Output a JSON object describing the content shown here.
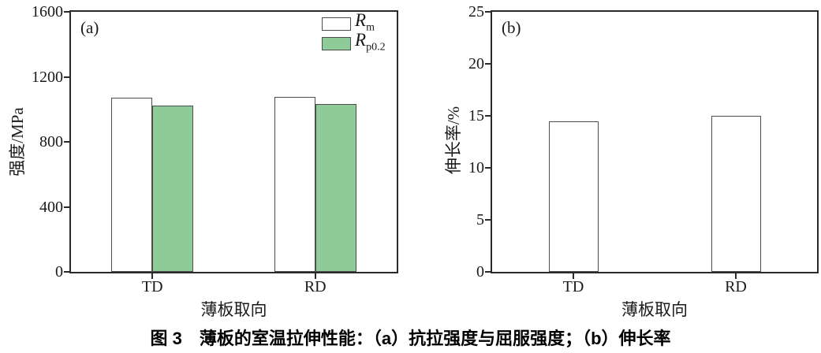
{
  "figure": {
    "caption": "图 3　薄板的室温拉伸性能：（a）抗拉强度与屈服强度；（b）伸长率"
  },
  "colors": {
    "bar_fill_white": "#ffffff",
    "bar_fill_green": "#8ecb99",
    "bar_edge": "#4d4d4d",
    "axis": "#2a2a2a",
    "text": "#1a1a1a"
  },
  "chart_data": [
    {
      "type": "bar",
      "panel_label": "(a)",
      "xlabel": "薄板取向",
      "ylabel": "强度/MPa",
      "ylim": [
        0,
        1600
      ],
      "yticks": [
        0,
        400,
        800,
        1200,
        1600
      ],
      "categories": [
        "TD",
        "RD"
      ],
      "series": [
        {
          "name": "Rm",
          "legend_main": "R",
          "legend_sub": "m",
          "fill": "#ffffff",
          "values": [
            1070,
            1075
          ]
        },
        {
          "name": "Rp0.2",
          "legend_main": "R",
          "legend_sub": "p0.2",
          "fill": "#8ecb99",
          "values": [
            1025,
            1035
          ]
        }
      ],
      "legend_position": "top-right",
      "grid": false
    },
    {
      "type": "bar",
      "panel_label": "(b)",
      "xlabel": "薄板取向",
      "ylabel": "伸长率/%",
      "ylim": [
        0,
        25
      ],
      "yticks": [
        0,
        5,
        10,
        15,
        20,
        25
      ],
      "categories": [
        "TD",
        "RD"
      ],
      "series": [
        {
          "name": "elongation",
          "fill": "#ffffff",
          "values": [
            14.5,
            15.0
          ]
        }
      ],
      "legend_position": "none",
      "grid": false
    }
  ]
}
